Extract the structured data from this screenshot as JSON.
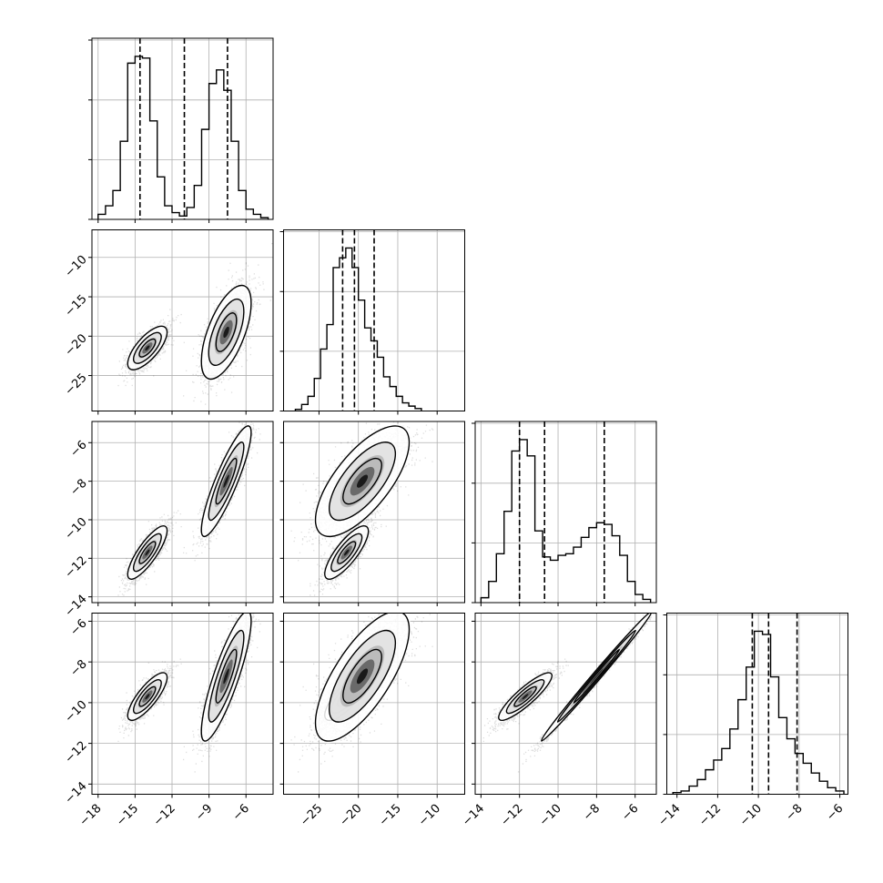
{
  "chart_data": {
    "type": "corner",
    "parameters": [
      {
        "range": [
          -18.5,
          -3.8
        ],
        "ticks": [
          -18,
          -15,
          -12,
          -9,
          -6
        ],
        "tick_labels": [
          "−18",
          "−15",
          "−12",
          "−9",
          "−6"
        ]
      },
      {
        "range": [
          -29.5,
          -6.5
        ],
        "ticks": [
          -25,
          -20,
          -15,
          -10
        ],
        "tick_labels": [
          "−25",
          "−20",
          "−15",
          "−10"
        ]
      },
      {
        "range": [
          -14.3,
          -4.9
        ],
        "ticks": [
          -14,
          -12,
          -10,
          -8,
          -6
        ],
        "tick_labels": [
          "−14",
          "−12",
          "−10",
          "−8",
          "−6"
        ]
      },
      {
        "range": [
          -14.5,
          -5.6
        ],
        "ticks": [
          -14,
          -12,
          -10,
          -8,
          -6
        ],
        "tick_labels": [
          "−14",
          "−12",
          "−10",
          "−8",
          "−6"
        ]
      }
    ],
    "quantiles": [
      [
        -14.6,
        -11.0,
        -7.5
      ],
      [
        -22.0,
        -20.5,
        -18.0
      ],
      [
        -12.0,
        -10.7,
        -7.6
      ],
      [
        -10.3,
        -9.5,
        -8.1
      ]
    ],
    "histograms": [
      {
        "bins": [
          -18.0,
          -17.4,
          -16.8,
          -16.2,
          -15.6,
          -15.0,
          -14.4,
          -13.8,
          -13.2,
          -12.6,
          -12.0,
          -11.4,
          -10.8,
          -10.2,
          -9.6,
          -9.0,
          -8.4,
          -7.8,
          -7.2,
          -6.6,
          -6.0,
          -5.4,
          -4.8,
          -4.2
        ],
        "counts": [
          30,
          80,
          170,
          460,
          920,
          960,
          950,
          580,
          250,
          80,
          40,
          20,
          70,
          200,
          530,
          800,
          880,
          760,
          460,
          170,
          60,
          30,
          10
        ]
      },
      {
        "bins": [
          -28.0,
          -27.2,
          -26.4,
          -25.6,
          -24.8,
          -24.0,
          -23.2,
          -22.4,
          -21.6,
          -20.8,
          -20.0,
          -19.2,
          -18.4,
          -17.6,
          -16.8,
          -16.0,
          -15.2,
          -14.4,
          -13.6,
          -12.8,
          -12.0
        ],
        "counts": [
          10,
          40,
          90,
          200,
          380,
          530,
          880,
          940,
          1000,
          880,
          680,
          510,
          430,
          330,
          210,
          150,
          90,
          50,
          30,
          15
        ]
      },
      {
        "bins": [
          -14.0,
          -13.6,
          -13.2,
          -12.8,
          -12.4,
          -12.0,
          -11.6,
          -11.2,
          -10.8,
          -10.4,
          -10.0,
          -9.6,
          -9.2,
          -8.8,
          -8.4,
          -8.0,
          -7.6,
          -7.2,
          -6.8,
          -6.4,
          -6.0,
          -5.6,
          -5.2
        ],
        "counts": [
          30,
          130,
          300,
          560,
          930,
          1000,
          900,
          440,
          280,
          260,
          290,
          300,
          340,
          400,
          460,
          490,
          480,
          410,
          290,
          130,
          50,
          20
        ]
      },
      {
        "bins": [
          -14.2,
          -13.8,
          -13.4,
          -13.0,
          -12.6,
          -12.2,
          -11.8,
          -11.4,
          -11.0,
          -10.6,
          -10.2,
          -9.8,
          -9.4,
          -9.0,
          -8.6,
          -8.2,
          -7.8,
          -7.4,
          -7.0,
          -6.6,
          -6.2,
          -5.8
        ],
        "counts": [
          10,
          20,
          50,
          90,
          150,
          210,
          280,
          400,
          580,
          780,
          1000,
          980,
          720,
          470,
          340,
          250,
          190,
          130,
          80,
          40,
          20
        ]
      }
    ],
    "components": [
      {
        "means": [
          -14.0,
          -21.5,
          -11.7,
          -9.7
        ],
        "sds": [
          0.75,
          1.3,
          0.65,
          0.55
        ],
        "corr": [
          [
            1,
            0.72,
            0.82,
            0.8
          ],
          [
            0.72,
            1,
            0.8,
            0.78
          ],
          [
            0.82,
            0.8,
            1,
            0.88
          ],
          [
            0.8,
            0.78,
            0.88,
            1
          ]
        ],
        "weight": 0.52
      },
      {
        "means": [
          -7.6,
          -19.5,
          -8.0,
          -8.7
        ],
        "sds": [
          0.95,
          2.8,
          1.35,
          1.5
        ],
        "corr": [
          [
            1,
            0.62,
            0.88,
            0.85
          ],
          [
            0.62,
            1,
            0.7,
            0.72
          ],
          [
            0.88,
            0.7,
            1,
            0.995
          ],
          [
            0.85,
            0.72,
            0.995,
            1
          ]
        ],
        "weight": 0.48
      }
    ],
    "contour_levels": [
      0.5,
      1.0,
      1.5
    ]
  }
}
